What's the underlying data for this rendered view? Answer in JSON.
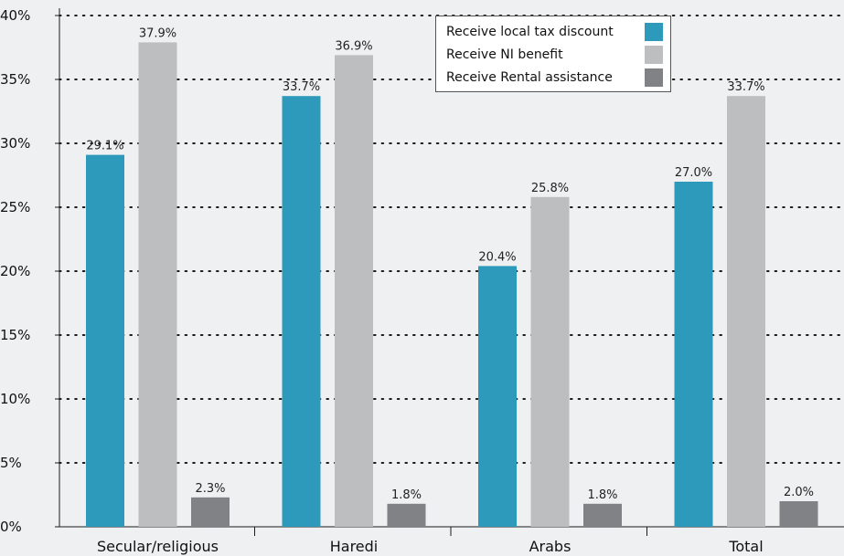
{
  "chart_data": {
    "type": "bar",
    "title": "",
    "xlabel": "",
    "ylabel": "",
    "categories": [
      "Secular/religious",
      "Haredi",
      "Arabs",
      "Total"
    ],
    "series": [
      {
        "name": "Receive local tax discount",
        "values": [
          29.1,
          33.7,
          20.4,
          27.0
        ],
        "labels": [
          "29.1%",
          "33.7%",
          "20.4%",
          "27.0%"
        ],
        "color": "#2e9abb"
      },
      {
        "name": "Receive NI benefit",
        "values": [
          37.9,
          36.9,
          25.8,
          33.7
        ],
        "labels": [
          "37.9%",
          "36.9%",
          "25.8%",
          "33.7%"
        ],
        "color": "#bcbec0"
      },
      {
        "name": "Receive Rental assistance",
        "values": [
          2.3,
          1.8,
          1.8,
          2.0
        ],
        "labels": [
          "2.3%",
          "1.8%",
          "1.8%",
          "2.0%"
        ],
        "color": "#808285"
      }
    ],
    "y_ticks": [
      "0%",
      "5%",
      "10%",
      "15%",
      "20%",
      "25%",
      "30%",
      "35%",
      "40%"
    ],
    "ylim": [
      0,
      40
    ],
    "grid": "dotted horizontal",
    "legend_position": "top-right"
  }
}
